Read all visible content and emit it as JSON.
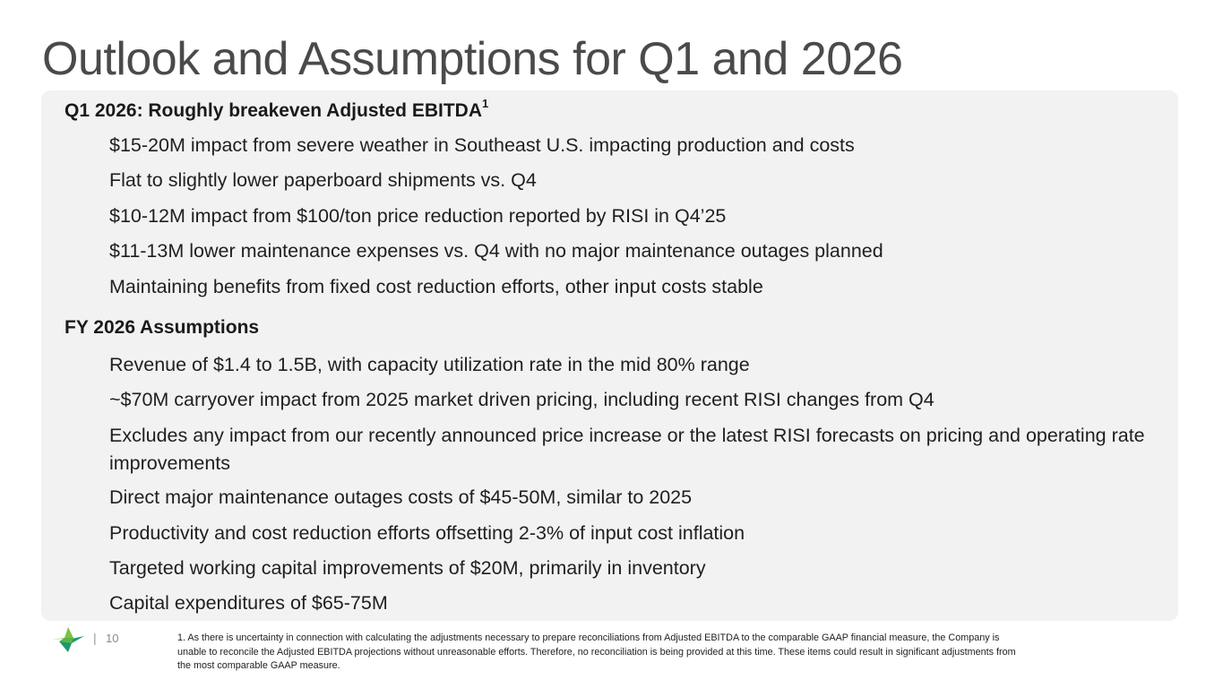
{
  "title": "Outlook and Assumptions for Q1 and 2026",
  "q1": {
    "heading": "Q1 2026: Roughly breakeven Adjusted EBITDA",
    "heading_sup": "1",
    "bullets": [
      "$15-20M impact from severe weather in Southeast U.S. impacting production and costs",
      "Flat to slightly lower paperboard shipments vs. Q4",
      "$10-12M impact from $100/ton price reduction reported by RISI in Q4’25",
      "$11-13M lower maintenance expenses vs. Q4 with no major maintenance outages planned",
      "Maintaining benefits from fixed cost reduction efforts, other input costs stable"
    ]
  },
  "fy": {
    "heading": "FY 2026 Assumptions",
    "bullets": [
      "Revenue of $1.4 to 1.5B, with capacity utilization rate in the mid 80% range",
      "~$70M carryover impact from 2025 market driven pricing, including recent RISI changes from Q4",
      "Excludes any impact from our recently announced price increase or the latest RISI forecasts on pricing and operating rate improvements",
      "Direct major maintenance outages costs of $45-50M, similar to 2025",
      "Productivity and cost reduction efforts offsetting 2-3% of input cost inflation",
      "Targeted working capital improvements of $20M, primarily in inventory",
      "Capital expenditures of $65-75M"
    ]
  },
  "footer": {
    "logo_icon": "company-logo-icon",
    "separator": "|",
    "page_number": "10",
    "footnote": "1. As there is uncertainty in connection with calculating the adjustments necessary to prepare reconciliations from Adjusted EBITDA to the comparable GAAP financial measure, the Company is unable to reconcile the Adjusted EBITDA projections without unreasonable efforts. Therefore, no reconciliation is being provided at this time. These items could result in significant adjustments from the most comparable GAAP measure."
  },
  "colors": {
    "panel_bg": "#f2f2f2",
    "title": "#4a4a4a",
    "logo_light_green": "#7cc242",
    "logo_dark_green": "#1a9a6c"
  }
}
